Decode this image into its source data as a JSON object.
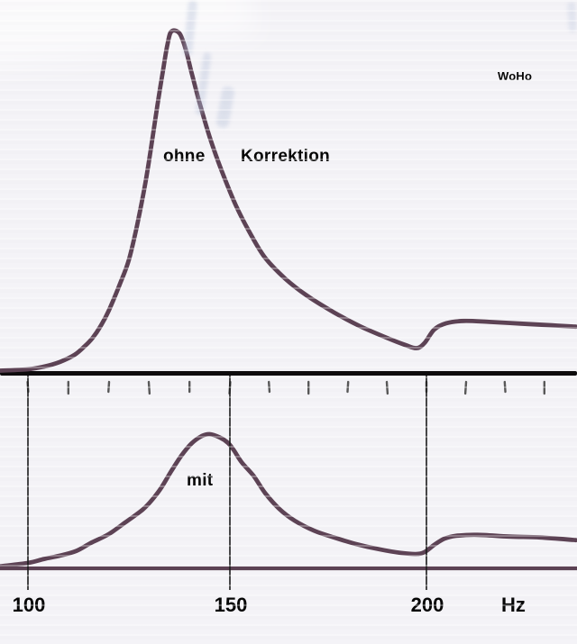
{
  "labels": {
    "curve1_word1": "ohne",
    "curve1_word2": "Korrektion",
    "curve2": "mit",
    "watermark": "WoHo",
    "axis_unit": "Hz"
  },
  "colors": {
    "curve": "#5d4355",
    "divider": "#0e0c0d",
    "grid_line": "#1b1b1b",
    "tick": "#3d3d3d",
    "text": "#060606",
    "background": "#f4f3f7",
    "bleed_through": "#b9c4dc"
  },
  "chart_data": {
    "type": "line",
    "title": "",
    "xlabel": "Hz",
    "ylabel": "",
    "y_axis_note": "relative amplitude, unlabeled axis, normalized 0-100 per panel",
    "x_range_hz": [
      93,
      238
    ],
    "x_tick_labels_hz": [
      100,
      150,
      200
    ],
    "x_minor_ticks_hz": [
      100,
      110,
      120,
      130,
      140,
      150,
      160,
      170,
      180,
      190,
      200,
      210,
      220,
      230
    ],
    "grid": "vertical lines at labeled ticks only",
    "legend_position": "none (labels written on chart)",
    "annotations": [
      {
        "text": "ohne Korrektion",
        "meaning": "upper curve, without correction"
      },
      {
        "text": "mit",
        "meaning": "lower curve, with correction"
      },
      {
        "text": "WoHo",
        "meaning": "author watermark, top right"
      }
    ],
    "series": [
      {
        "name": "ohne Korrektion",
        "panel": "top",
        "peak_hz": 136,
        "points_hz_amp": [
          [
            93,
            0.4
          ],
          [
            100,
            0.8
          ],
          [
            104,
            1.6
          ],
          [
            108,
            3
          ],
          [
            111.5,
            5
          ],
          [
            114,
            7.5
          ],
          [
            116,
            10
          ],
          [
            118,
            13.5
          ],
          [
            120,
            18
          ],
          [
            123,
            26.5
          ],
          [
            125,
            33
          ],
          [
            127,
            43
          ],
          [
            129,
            55
          ],
          [
            130.5,
            66
          ],
          [
            132,
            78
          ],
          [
            133.5,
            89
          ],
          [
            134.5,
            96
          ],
          [
            135.5,
            100
          ],
          [
            137.5,
            99.5
          ],
          [
            139,
            95
          ],
          [
            140.5,
            88
          ],
          [
            142.5,
            79
          ],
          [
            145,
            69
          ],
          [
            148,
            59
          ],
          [
            151.5,
            49
          ],
          [
            155.5,
            40
          ],
          [
            159,
            33.5
          ],
          [
            164,
            27.5
          ],
          [
            169.5,
            22.5
          ],
          [
            176.5,
            17.5
          ],
          [
            183,
            13.5
          ],
          [
            190,
            10
          ],
          [
            194.5,
            8
          ],
          [
            197.5,
            7
          ],
          [
            199.5,
            8.5
          ],
          [
            202,
            12.5
          ],
          [
            205,
            14.3
          ],
          [
            209.5,
            15
          ],
          [
            216,
            14.7
          ],
          [
            224,
            14.2
          ],
          [
            232,
            13.7
          ],
          [
            238,
            13.3
          ]
        ]
      },
      {
        "name": "mit Korrektion",
        "panel": "bottom",
        "peak_hz": 145,
        "points_hz_amp": [
          [
            93,
            1.5
          ],
          [
            100,
            4
          ],
          [
            104,
            7
          ],
          [
            108,
            9.5
          ],
          [
            112,
            13
          ],
          [
            115.5,
            18.8
          ],
          [
            120,
            25.5
          ],
          [
            124,
            34
          ],
          [
            128.5,
            44
          ],
          [
            131,
            52
          ],
          [
            133,
            60
          ],
          [
            135.5,
            72.5
          ],
          [
            138,
            84
          ],
          [
            140.5,
            93
          ],
          [
            143,
            98.5
          ],
          [
            145,
            100
          ],
          [
            147.5,
            97.5
          ],
          [
            149.5,
            93.5
          ],
          [
            151,
            88
          ],
          [
            153,
            79
          ],
          [
            156,
            69
          ],
          [
            159,
            56
          ],
          [
            162.5,
            44.5
          ],
          [
            166.5,
            35.5
          ],
          [
            171.5,
            28
          ],
          [
            176.5,
            23
          ],
          [
            182,
            18.2
          ],
          [
            188,
            14.2
          ],
          [
            193.5,
            11.5
          ],
          [
            197.3,
            10.7
          ],
          [
            199.5,
            12.1
          ],
          [
            202,
            17.5
          ],
          [
            204.5,
            22
          ],
          [
            207.5,
            24.2
          ],
          [
            213,
            25
          ],
          [
            221,
            23.7
          ],
          [
            229,
            23
          ],
          [
            238,
            21
          ]
        ]
      },
      {
        "name": "zero baseline (bottom panel)",
        "panel": "bottom",
        "points_hz_amp": [
          [
            93,
            0
          ],
          [
            240,
            0
          ]
        ]
      }
    ]
  }
}
